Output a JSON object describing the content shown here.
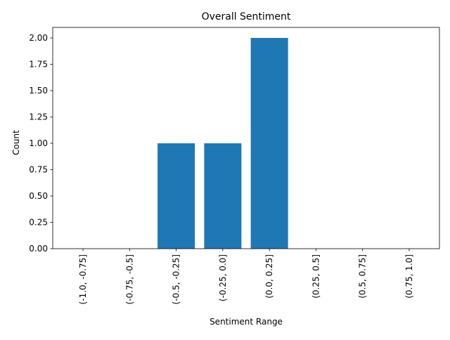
{
  "chart_data": {
    "type": "bar",
    "title": "Overall Sentiment",
    "xlabel": "Sentiment Range",
    "ylabel": "Count",
    "categories": [
      "(-1.0, -0.75]",
      "(-0.75, -0.5]",
      "(-0.5, -0.25]",
      "(-0.25, 0.0]",
      "(0.0, 0.25]",
      "(0.25, 0.5]",
      "(0.5, 0.75]",
      "(0.75, 1.0]"
    ],
    "values": [
      0,
      0,
      1,
      1,
      2,
      0,
      0,
      0
    ],
    "ylim": [
      0,
      2.1
    ],
    "yticks": [
      "0.00",
      "0.25",
      "0.50",
      "0.75",
      "1.00",
      "1.25",
      "1.50",
      "1.75",
      "2.00"
    ],
    "bar_color": "#1f77b4",
    "grid": false,
    "legend": false
  }
}
